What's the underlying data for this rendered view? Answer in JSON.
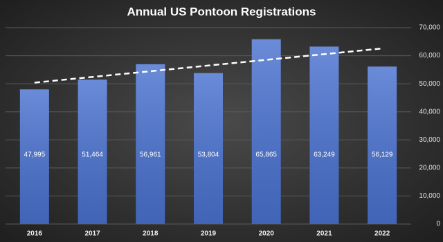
{
  "chart_data": {
    "type": "bar",
    "title": "Annual US Pontoon Registrations",
    "categories": [
      "2016",
      "2017",
      "2018",
      "2019",
      "2020",
      "2021",
      "2022"
    ],
    "values": [
      47995,
      51464,
      56961,
      53804,
      65865,
      63249,
      56129
    ],
    "value_labels": [
      "47,995",
      "51,464",
      "56,961",
      "53,804",
      "65,865",
      "63,249",
      "56,129"
    ],
    "color": "#4a72d0",
    "ylim": [
      0,
      70000
    ],
    "yticks": [
      0,
      {
        "value": 10000,
        "label": "10,000"
      },
      {
        "value": 20000,
        "label": "20,000"
      },
      {
        "value": 30000,
        "label": "30,000"
      },
      {
        "value": 40000,
        "label": "40,000"
      },
      {
        "value": 50000,
        "label": "50,000"
      },
      {
        "value": 60000,
        "label": "60,000"
      },
      {
        "value": 70000,
        "label": "70,000"
      }
    ],
    "grid": true,
    "trendline": "linear"
  }
}
